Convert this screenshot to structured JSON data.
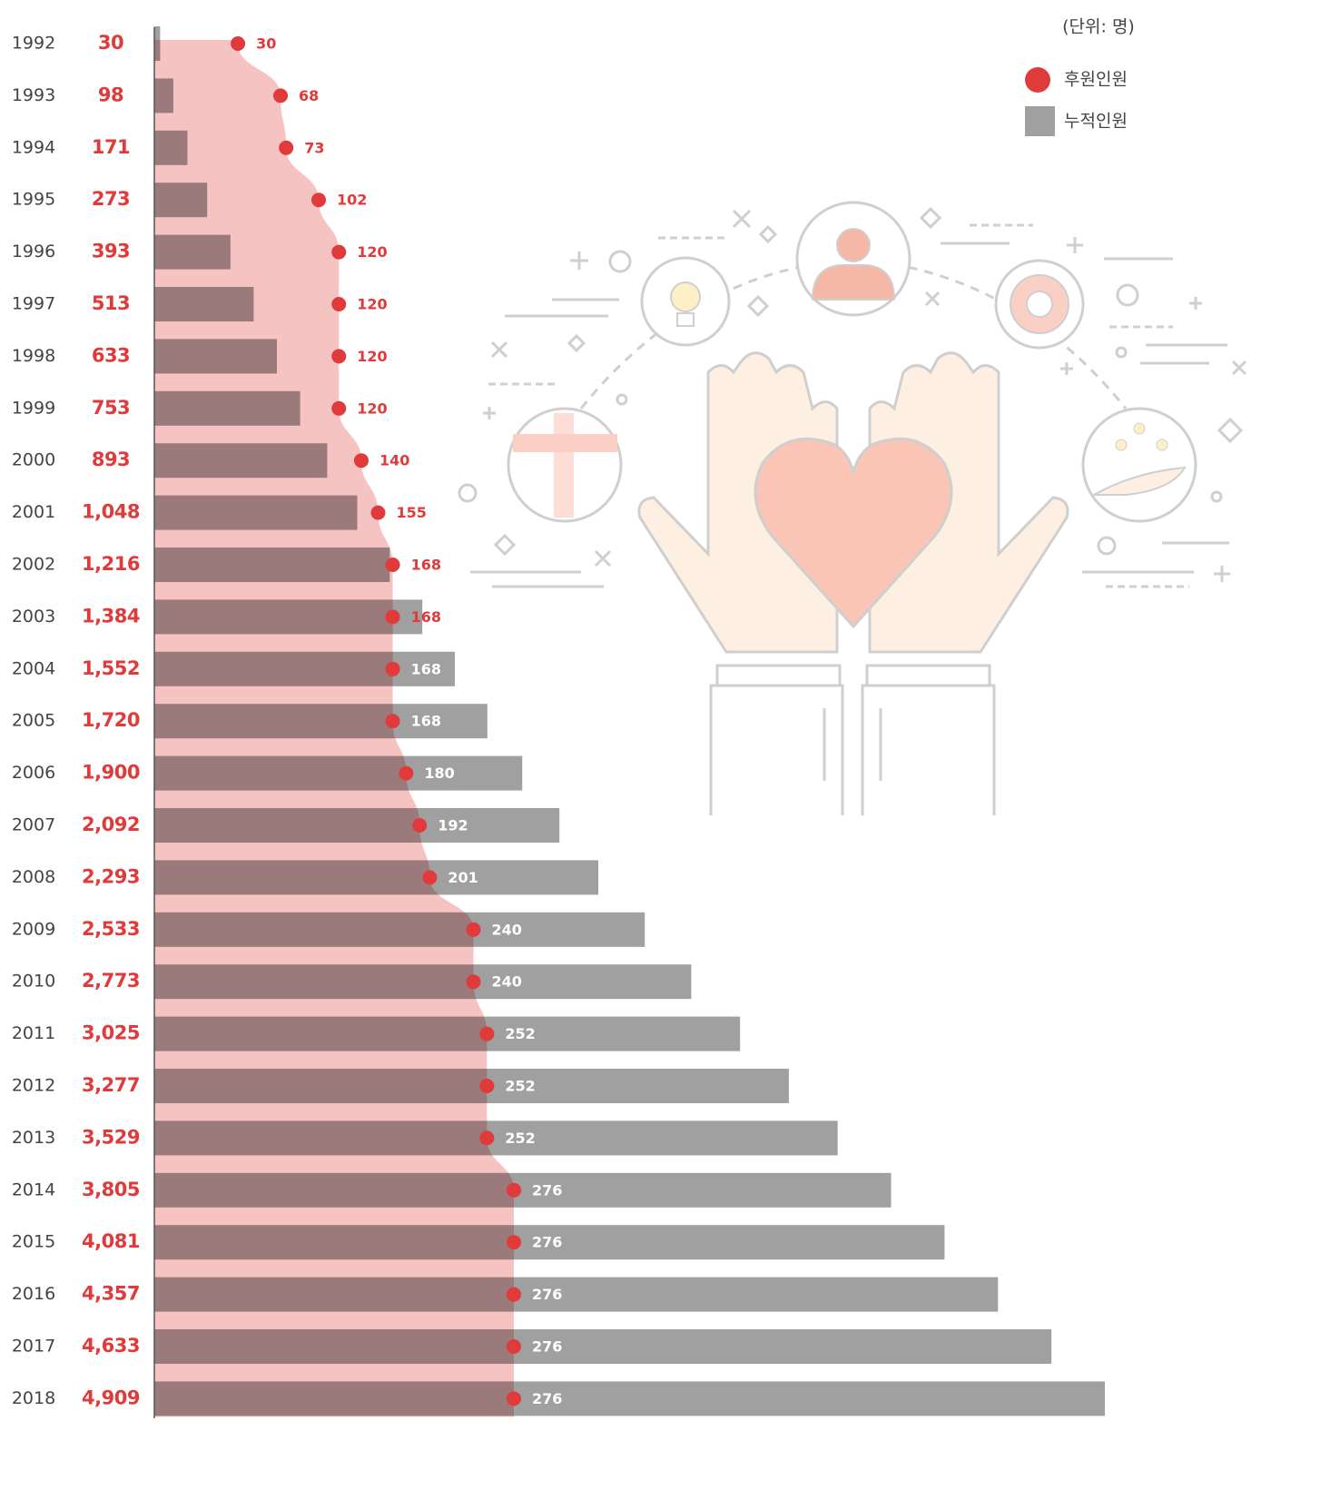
{
  "chart_data": {
    "type": "bar",
    "unit_label": "(단위: 명)",
    "categories": [
      "1992",
      "1993",
      "1994",
      "1995",
      "1996",
      "1997",
      "1998",
      "1999",
      "2000",
      "2001",
      "2002",
      "2003",
      "2004",
      "2005",
      "2006",
      "2007",
      "2008",
      "2009",
      "2010",
      "2011",
      "2012",
      "2013",
      "2014",
      "2015",
      "2016",
      "2017",
      "2018"
    ],
    "series": [
      {
        "name": "후원인원",
        "color": "#e03a3a",
        "values": [
          30,
          68,
          73,
          102,
          120,
          120,
          120,
          120,
          140,
          155,
          168,
          168,
          168,
          168,
          180,
          192,
          201,
          240,
          240,
          252,
          252,
          252,
          276,
          276,
          276,
          276,
          276
        ]
      },
      {
        "name": "누적인원",
        "color": "#a0a0a0",
        "values": [
          30,
          98,
          171,
          273,
          393,
          513,
          633,
          753,
          893,
          1048,
          1216,
          1384,
          1552,
          1720,
          1900,
          2092,
          2293,
          2533,
          2773,
          3025,
          3277,
          3529,
          3805,
          4081,
          4357,
          4633,
          4909
        ],
        "value_labels": [
          "30",
          "98",
          "171",
          "273",
          "393",
          "513",
          "633",
          "753",
          "893",
          "1,048",
          "1,216",
          "1,384",
          "1,552",
          "1,720",
          "1,900",
          "2,092",
          "2,293",
          "2,533",
          "2,773",
          "3,025",
          "3,277",
          "3,529",
          "3,805",
          "4,081",
          "4,357",
          "4,633",
          "4,909"
        ]
      }
    ]
  }
}
